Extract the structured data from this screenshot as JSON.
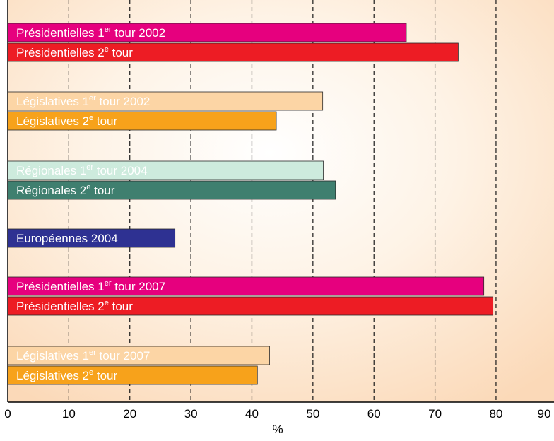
{
  "chart_data": {
    "type": "bar",
    "orientation": "horizontal",
    "xlabel": "%",
    "ylabel": "",
    "xlim": [
      0,
      90
    ],
    "x_ticks": [
      "0",
      "10",
      "20",
      "30",
      "40",
      "50",
      "60",
      "70",
      "80",
      "90"
    ],
    "grid": "dashed vertical lines",
    "background": "radial gradient: white center to light orange-peach",
    "groups": [
      {
        "bars": [
          {
            "label_main": "Présidentielles 1",
            "label_sup": "er",
            "label_tail": " tour 2002",
            "value": 65.3,
            "color": "#e6007e",
            "text_color": "#ffffff"
          },
          {
            "label_main": "Présidentielles 2",
            "label_sup": "e",
            "label_tail": " tour",
            "value": 73.8,
            "color": "#ed1c24",
            "text_color": "#ffffff"
          }
        ]
      },
      {
        "bars": [
          {
            "label_main": "Législatives 1",
            "label_sup": "er",
            "label_tail": " tour 2002",
            "value": 51.6,
            "color": "#fcd5a5",
            "text_color": "#ffffff"
          },
          {
            "label_main": "Législatives 2",
            "label_sup": "e",
            "label_tail": " tour",
            "value": 44.0,
            "color": "#f7a21b",
            "text_color": "#ffffff"
          }
        ]
      },
      {
        "bars": [
          {
            "label_main": "Régionales 1",
            "label_sup": "er",
            "label_tail": " tour 2004",
            "value": 51.7,
            "color": "#cdebdd",
            "text_color": "#ffffff"
          },
          {
            "label_main": "Régionales 2",
            "label_sup": "e",
            "label_tail": " tour",
            "value": 53.7,
            "color": "#3f7f6f",
            "text_color": "#ffffff"
          }
        ]
      },
      {
        "bars": [
          {
            "label_main": "Européennes 2004",
            "label_sup": "",
            "label_tail": "",
            "value": 27.4,
            "color": "#2e3192",
            "text_color": "#ffffff"
          }
        ]
      },
      {
        "bars": [
          {
            "label_main": "Présidentielles 1",
            "label_sup": "er",
            "label_tail": " tour 2007",
            "value": 78.0,
            "color": "#e6007e",
            "text_color": "#ffffff"
          },
          {
            "label_main": "Présidentielles 2",
            "label_sup": "e",
            "label_tail": " tour",
            "value": 79.5,
            "color": "#ed1c24",
            "text_color": "#ffffff"
          }
        ]
      },
      {
        "bars": [
          {
            "label_main": "Législatives 1",
            "label_sup": "er",
            "label_tail": " tour 2007",
            "value": 42.9,
            "color": "#fcd5a5",
            "text_color": "#ffffff"
          },
          {
            "label_main": "Législatives 2",
            "label_sup": "e",
            "label_tail": " tour",
            "value": 40.9,
            "color": "#f7a21b",
            "text_color": "#ffffff"
          }
        ]
      }
    ]
  }
}
